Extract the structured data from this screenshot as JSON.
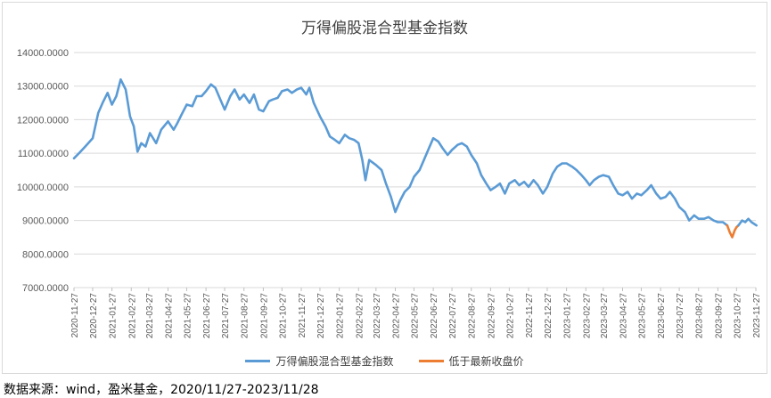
{
  "chart_data": {
    "type": "line",
    "title": "万得偏股混合型基金指数",
    "ylim": [
      7000,
      14000
    ],
    "yticks": [
      "7000.0000",
      "8000.0000",
      "9000.0000",
      "10000.0000",
      "11000.0000",
      "12000.0000",
      "13000.0000",
      "14000.0000"
    ],
    "xticks": [
      "2020-11-27",
      "2020-12-27",
      "2021-01-27",
      "2021-02-27",
      "2021-03-27",
      "2021-04-27",
      "2021-05-27",
      "2021-06-27",
      "2021-07-27",
      "2021-08-27",
      "2021-09-27",
      "2021-10-27",
      "2021-11-27",
      "2021-12-27",
      "2022-01-27",
      "2022-02-27",
      "2022-03-27",
      "2022-04-27",
      "2022-05-27",
      "2022-06-27",
      "2022-07-27",
      "2022-08-27",
      "2022-09-27",
      "2022-10-27",
      "2022-11-27",
      "2022-12-27",
      "2023-01-27",
      "2023-02-27",
      "2023-03-27",
      "2023-04-27",
      "2023-05-27",
      "2023-06-27",
      "2023-07-27",
      "2023-08-27",
      "2023-09-27",
      "2023-10-27",
      "2023-11-27"
    ],
    "grid": true,
    "legend_position": "bottom",
    "series": [
      {
        "name": "万得偏股混合型基金指数",
        "color": "#5b9bd5",
        "points": [
          [
            "2020-11-27",
            10850
          ],
          [
            "2020-12-05",
            11000
          ],
          [
            "2020-12-15",
            11200
          ],
          [
            "2020-12-27",
            11450
          ],
          [
            "2021-01-05",
            12200
          ],
          [
            "2021-01-12",
            12500
          ],
          [
            "2021-01-20",
            12800
          ],
          [
            "2021-01-27",
            12450
          ],
          [
            "2021-02-03",
            12700
          ],
          [
            "2021-02-10",
            13200
          ],
          [
            "2021-02-18",
            12900
          ],
          [
            "2021-02-25",
            12100
          ],
          [
            "2021-03-03",
            11800
          ],
          [
            "2021-03-09",
            11050
          ],
          [
            "2021-03-15",
            11300
          ],
          [
            "2021-03-22",
            11200
          ],
          [
            "2021-03-29",
            11600
          ],
          [
            "2021-04-08",
            11300
          ],
          [
            "2021-04-16",
            11700
          ],
          [
            "2021-04-27",
            11950
          ],
          [
            "2021-05-06",
            11700
          ],
          [
            "2021-05-12",
            11900
          ],
          [
            "2021-05-20",
            12200
          ],
          [
            "2021-05-27",
            12450
          ],
          [
            "2021-06-05",
            12400
          ],
          [
            "2021-06-12",
            12700
          ],
          [
            "2021-06-20",
            12700
          ],
          [
            "2021-06-27",
            12850
          ],
          [
            "2021-07-05",
            13050
          ],
          [
            "2021-07-12",
            12950
          ],
          [
            "2021-07-20",
            12600
          ],
          [
            "2021-07-27",
            12300
          ],
          [
            "2021-08-05",
            12700
          ],
          [
            "2021-08-12",
            12900
          ],
          [
            "2021-08-20",
            12600
          ],
          [
            "2021-08-27",
            12750
          ],
          [
            "2021-09-05",
            12500
          ],
          [
            "2021-09-12",
            12750
          ],
          [
            "2021-09-20",
            12300
          ],
          [
            "2021-09-27",
            12250
          ],
          [
            "2021-10-06",
            12550
          ],
          [
            "2021-10-12",
            12600
          ],
          [
            "2021-10-20",
            12650
          ],
          [
            "2021-10-27",
            12850
          ],
          [
            "2021-11-05",
            12900
          ],
          [
            "2021-11-12",
            12800
          ],
          [
            "2021-11-20",
            12900
          ],
          [
            "2021-11-27",
            12950
          ],
          [
            "2021-12-05",
            12750
          ],
          [
            "2021-12-10",
            12950
          ],
          [
            "2021-12-17",
            12500
          ],
          [
            "2021-12-27",
            12100
          ],
          [
            "2022-01-05",
            11800
          ],
          [
            "2022-01-12",
            11500
          ],
          [
            "2022-01-20",
            11400
          ],
          [
            "2022-01-27",
            11300
          ],
          [
            "2022-02-05",
            11550
          ],
          [
            "2022-02-12",
            11450
          ],
          [
            "2022-02-20",
            11400
          ],
          [
            "2022-02-27",
            11300
          ],
          [
            "2022-03-05",
            10800
          ],
          [
            "2022-03-10",
            10200
          ],
          [
            "2022-03-16",
            10800
          ],
          [
            "2022-03-27",
            10650
          ],
          [
            "2022-04-05",
            10500
          ],
          [
            "2022-04-12",
            10100
          ],
          [
            "2022-04-20",
            9700
          ],
          [
            "2022-04-27",
            9250
          ],
          [
            "2022-05-05",
            9600
          ],
          [
            "2022-05-12",
            9850
          ],
          [
            "2022-05-20",
            10000
          ],
          [
            "2022-05-27",
            10300
          ],
          [
            "2022-06-05",
            10500
          ],
          [
            "2022-06-12",
            10800
          ],
          [
            "2022-06-20",
            11150
          ],
          [
            "2022-06-27",
            11450
          ],
          [
            "2022-07-05",
            11350
          ],
          [
            "2022-07-12",
            11150
          ],
          [
            "2022-07-20",
            10950
          ],
          [
            "2022-07-27",
            11100
          ],
          [
            "2022-08-05",
            11250
          ],
          [
            "2022-08-12",
            11300
          ],
          [
            "2022-08-20",
            11200
          ],
          [
            "2022-08-27",
            10950
          ],
          [
            "2022-09-05",
            10700
          ],
          [
            "2022-09-12",
            10350
          ],
          [
            "2022-09-20",
            10100
          ],
          [
            "2022-09-27",
            9900
          ],
          [
            "2022-10-05",
            10000
          ],
          [
            "2022-10-12",
            10100
          ],
          [
            "2022-10-20",
            9800
          ],
          [
            "2022-10-27",
            10100
          ],
          [
            "2022-11-05",
            10200
          ],
          [
            "2022-11-12",
            10050
          ],
          [
            "2022-11-20",
            10150
          ],
          [
            "2022-11-27",
            10000
          ],
          [
            "2022-12-05",
            10200
          ],
          [
            "2022-12-12",
            10050
          ],
          [
            "2022-12-20",
            9800
          ],
          [
            "2022-12-27",
            10000
          ],
          [
            "2023-01-05",
            10400
          ],
          [
            "2023-01-12",
            10600
          ],
          [
            "2023-01-20",
            10700
          ],
          [
            "2023-01-27",
            10700
          ],
          [
            "2023-02-05",
            10600
          ],
          [
            "2023-02-12",
            10500
          ],
          [
            "2023-02-20",
            10350
          ],
          [
            "2023-02-27",
            10200
          ],
          [
            "2023-03-05",
            10050
          ],
          [
            "2023-03-12",
            10200
          ],
          [
            "2023-03-20",
            10300
          ],
          [
            "2023-03-27",
            10350
          ],
          [
            "2023-04-05",
            10300
          ],
          [
            "2023-04-12",
            10050
          ],
          [
            "2023-04-20",
            9800
          ],
          [
            "2023-04-27",
            9750
          ],
          [
            "2023-05-05",
            9850
          ],
          [
            "2023-05-12",
            9650
          ],
          [
            "2023-05-20",
            9800
          ],
          [
            "2023-05-27",
            9750
          ],
          [
            "2023-06-05",
            9900
          ],
          [
            "2023-06-12",
            10050
          ],
          [
            "2023-06-20",
            9800
          ],
          [
            "2023-06-27",
            9650
          ],
          [
            "2023-07-05",
            9700
          ],
          [
            "2023-07-12",
            9850
          ],
          [
            "2023-07-20",
            9650
          ],
          [
            "2023-07-27",
            9400
          ],
          [
            "2023-08-05",
            9250
          ],
          [
            "2023-08-12",
            9000
          ],
          [
            "2023-08-20",
            9150
          ],
          [
            "2023-08-27",
            9050
          ],
          [
            "2023-09-05",
            9050
          ],
          [
            "2023-09-12",
            9100
          ],
          [
            "2023-09-20",
            9000
          ],
          [
            "2023-09-27",
            8950
          ],
          [
            "2023-10-05",
            8950
          ],
          [
            "2023-10-12",
            8850
          ]
        ]
      },
      {
        "name": "低于最新收盘价",
        "color": "#ed7d31",
        "points": [
          [
            "2023-10-12",
            8850
          ],
          [
            "2023-10-16",
            8650
          ],
          [
            "2023-10-20",
            8500
          ],
          [
            "2023-10-24",
            8700
          ],
          [
            "2023-10-27",
            8800
          ],
          [
            "2023-10-30",
            8850
          ]
        ]
      },
      {
        "name": "",
        "color": "#5b9bd5",
        "points": [
          [
            "2023-10-30",
            8850
          ],
          [
            "2023-11-05",
            9000
          ],
          [
            "2023-11-10",
            8950
          ],
          [
            "2023-11-15",
            9050
          ],
          [
            "2023-11-20",
            8950
          ],
          [
            "2023-11-28",
            8850
          ]
        ]
      }
    ]
  },
  "legend": {
    "items": [
      {
        "label": "万得偏股混合型基金指数",
        "color": "#5b9bd5"
      },
      {
        "label": "低于最新收盘价",
        "color": "#ed7d31"
      }
    ]
  },
  "source_note": "数据来源：wind，盈米基金，2020/11/27-2023/11/28"
}
